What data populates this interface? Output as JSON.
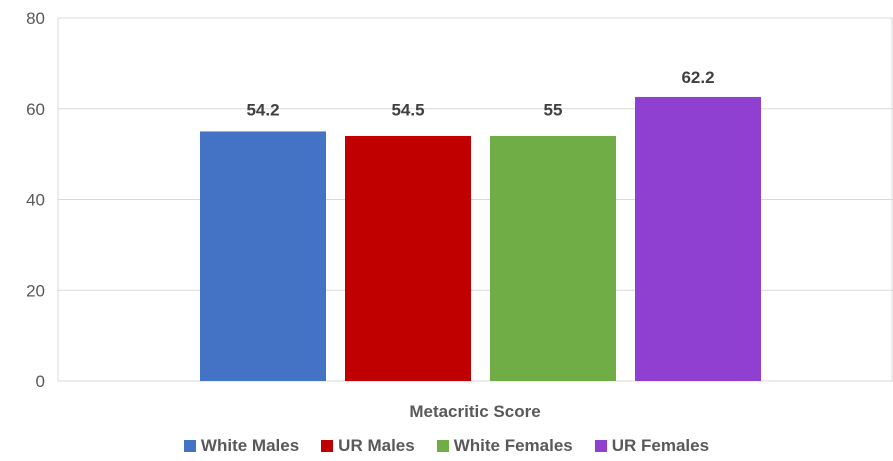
{
  "chart_data": {
    "type": "bar",
    "title": "",
    "xlabel": "",
    "ylabel": "",
    "categories": [
      "Metacritic Score"
    ],
    "ylim": [
      0,
      80
    ],
    "yticks": [
      0,
      20,
      40,
      60,
      80
    ],
    "grid": true,
    "legend_position": "bottom",
    "series": [
      {
        "name": "White Males",
        "values": [
          54.2
        ],
        "color": "#4472C4",
        "bar_height": 55
      },
      {
        "name": "UR Males",
        "values": [
          54.5
        ],
        "color": "#C00000",
        "bar_height": 54
      },
      {
        "name": "White Females",
        "values": [
          55
        ],
        "color": "#70AD47",
        "bar_height": 54
      },
      {
        "name": "UR Females",
        "values": [
          62.2
        ],
        "color": "#9040D0",
        "bar_height": 62.6
      }
    ]
  }
}
